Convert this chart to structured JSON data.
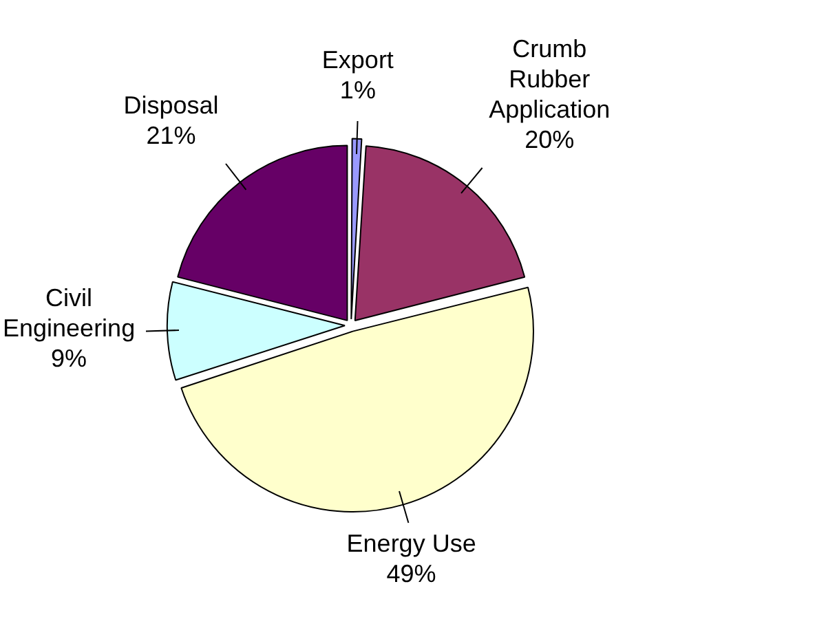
{
  "chart_data": {
    "type": "pie",
    "categories": [
      "Export",
      "Crumb Rubber Application",
      "Energy Use",
      "Civil Engineering",
      "Disposal"
    ],
    "values": [
      1,
      20,
      49,
      9,
      21
    ],
    "value_labels": [
      "1%",
      "20%",
      "49%",
      "9%",
      "21%"
    ],
    "colors": [
      "#9999ff",
      "#993366",
      "#ffffcc",
      "#ccffff",
      "#660066"
    ],
    "legend": false
  }
}
